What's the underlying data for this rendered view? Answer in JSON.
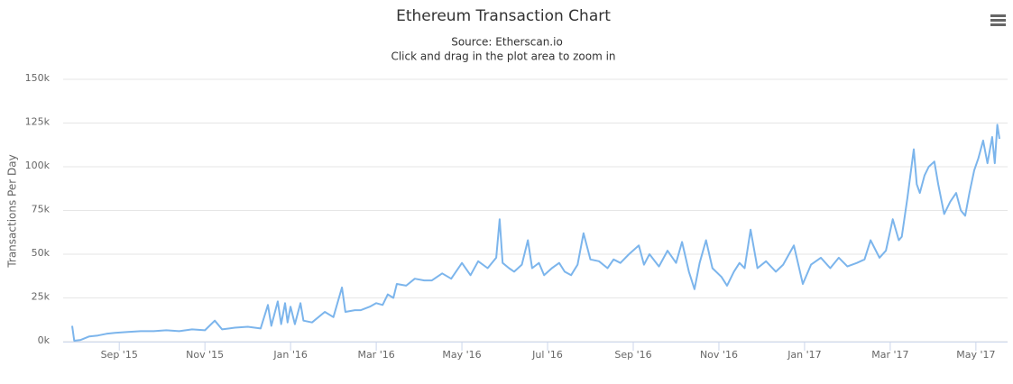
{
  "chart_data": {
    "type": "line",
    "title": "Ethereum Transaction Chart",
    "subtitle": [
      "Source: Etherscan.io",
      "Click and drag in the plot area to zoom in"
    ],
    "y_axis_label": "Transactions Per Day",
    "color": "#7cb5ec",
    "grid": true,
    "x": [
      -1.1,
      -1.05,
      -0.9,
      -0.7,
      -0.5,
      -0.3,
      -0.1,
      0.2,
      0.5,
      0.8,
      1.1,
      1.4,
      1.7,
      2.0,
      2.23,
      2.4,
      2.7,
      3.0,
      3.3,
      3.47,
      3.55,
      3.7,
      3.78,
      3.87,
      3.93,
      4.0,
      4.1,
      4.23,
      4.3,
      4.5,
      4.8,
      5.0,
      5.2,
      5.28,
      5.5,
      5.64,
      5.85,
      6.0,
      6.15,
      6.27,
      6.4,
      6.48,
      6.7,
      6.9,
      7.12,
      7.3,
      7.54,
      7.75,
      8.0,
      8.2,
      8.38,
      8.6,
      8.8,
      8.88,
      8.95,
      9.1,
      9.22,
      9.4,
      9.54,
      9.64,
      9.8,
      9.92,
      10.1,
      10.27,
      10.4,
      10.55,
      10.7,
      10.84,
      11.0,
      11.2,
      11.4,
      11.54,
      11.7,
      11.9,
      12.13,
      12.25,
      12.38,
      12.6,
      12.8,
      13.0,
      13.14,
      13.3,
      13.43,
      13.55,
      13.7,
      13.85,
      14.06,
      14.19,
      14.35,
      14.48,
      14.6,
      14.74,
      14.9,
      15.1,
      15.33,
      15.5,
      15.75,
      15.96,
      16.15,
      16.38,
      16.6,
      16.8,
      17.0,
      17.22,
      17.4,
      17.54,
      17.75,
      17.9,
      18.06,
      18.2,
      18.27,
      18.4,
      18.55,
      18.62,
      18.69,
      18.8,
      18.9,
      19.03,
      19.12,
      19.26,
      19.4,
      19.54,
      19.65,
      19.75,
      19.85,
      19.96,
      20.06,
      20.17,
      20.27,
      20.38,
      20.44,
      20.5,
      20.55
    ],
    "values": [
      9000,
      500,
      1000,
      3000,
      3500,
      4500,
      5000,
      5500,
      6000,
      6000,
      6500,
      6000,
      7000,
      6500,
      12000,
      7000,
      8000,
      8500,
      7500,
      21000,
      9000,
      23000,
      10000,
      22000,
      11000,
      20000,
      10000,
      22000,
      12000,
      11000,
      17000,
      14000,
      31000,
      17000,
      18000,
      18000,
      20000,
      22000,
      21000,
      27000,
      25000,
      33000,
      32000,
      36000,
      35000,
      35000,
      39000,
      36000,
      45000,
      38000,
      46000,
      42000,
      48000,
      70000,
      45000,
      42000,
      40000,
      44000,
      58000,
      42000,
      45000,
      38000,
      42000,
      45000,
      40000,
      38000,
      44000,
      62000,
      47000,
      46000,
      42000,
      47000,
      45000,
      50000,
      55000,
      44000,
      50000,
      43000,
      52000,
      45000,
      57000,
      40000,
      30000,
      45000,
      58000,
      42000,
      37000,
      32000,
      40000,
      45000,
      42000,
      64000,
      42000,
      46000,
      40000,
      44000,
      55000,
      33000,
      44000,
      48000,
      42000,
      48000,
      43000,
      45000,
      47000,
      58000,
      48000,
      52000,
      70000,
      58000,
      60000,
      82000,
      110000,
      90000,
      85000,
      95000,
      100000,
      103000,
      90000,
      73000,
      80000,
      85000,
      75000,
      72000,
      85000,
      98000,
      105000,
      115000,
      102000,
      117000,
      102000,
      124000,
      116000
    ],
    "xlim": [
      -1.31,
      20.74
    ],
    "xticks": [
      {
        "value": 0,
        "label": "Sep '15"
      },
      {
        "value": 2,
        "label": "Nov '15"
      },
      {
        "value": 4,
        "label": "Jan '16"
      },
      {
        "value": 6,
        "label": "Mar '16"
      },
      {
        "value": 8,
        "label": "May '16"
      },
      {
        "value": 10,
        "label": "Jul '16"
      },
      {
        "value": 12,
        "label": "Sep '16"
      },
      {
        "value": 14,
        "label": "Nov '16"
      },
      {
        "value": 16,
        "label": "Jan '17"
      },
      {
        "value": 18,
        "label": "Mar '17"
      },
      {
        "value": 20,
        "label": "May '17"
      }
    ],
    "ylim": [
      0,
      150000
    ],
    "yticks": [
      {
        "value": 0,
        "label": "0k"
      },
      {
        "value": 25000,
        "label": "25k"
      },
      {
        "value": 50000,
        "label": "50k"
      },
      {
        "value": 75000,
        "label": "75k"
      },
      {
        "value": 100000,
        "label": "100k"
      },
      {
        "value": 125000,
        "label": "125k"
      },
      {
        "value": 150000,
        "label": "150k"
      }
    ]
  }
}
